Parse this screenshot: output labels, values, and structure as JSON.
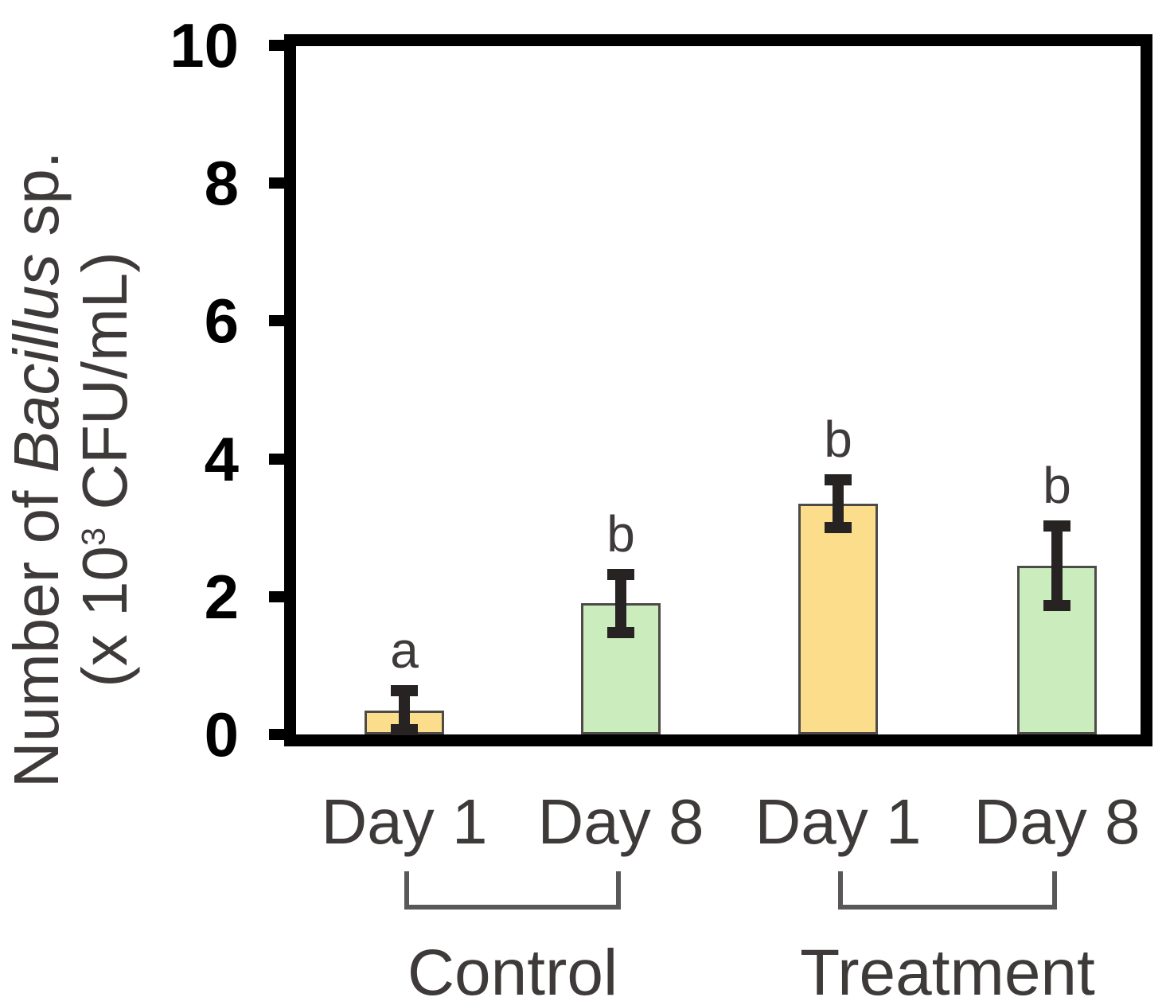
{
  "chart_data": {
    "type": "bar",
    "title": "",
    "ylabel": {
      "line1_prefix": "Number of ",
      "line1_italic": "Bacillus",
      "line1_suffix": " sp.",
      "line2_prefix": "(x 10",
      "line2_sup": "3",
      "line2_suffix": " CFU/mL)"
    },
    "xlabel": "",
    "ylim": [
      0,
      10
    ],
    "yticks": [
      0,
      2,
      4,
      6,
      8,
      10
    ],
    "grid": false,
    "legend": "none",
    "categories": [
      "Day 1",
      "Day 8",
      "Day 1",
      "Day 8"
    ],
    "values": [
      0.35,
      1.9,
      3.35,
      2.45
    ],
    "errors": [
      0.28,
      0.42,
      0.35,
      0.58
    ],
    "sig_letters": [
      "a",
      "b",
      "b",
      "b"
    ],
    "bar_fills": [
      "#FBDD8C",
      "#CBEDBD",
      "#FBDD8C",
      "#CBEDBD"
    ],
    "groups": [
      {
        "label": "Control",
        "bar_indices": [
          0,
          1
        ]
      },
      {
        "label": "Treatment",
        "bar_indices": [
          2,
          3
        ]
      }
    ],
    "colors": {
      "day1_fill": "#FBDD8C",
      "day8_fill": "#CBEDBD",
      "bar_border": "#4D4A49",
      "error_bar": "#272323",
      "axis": "#000000",
      "text": "#3E3A39"
    }
  }
}
